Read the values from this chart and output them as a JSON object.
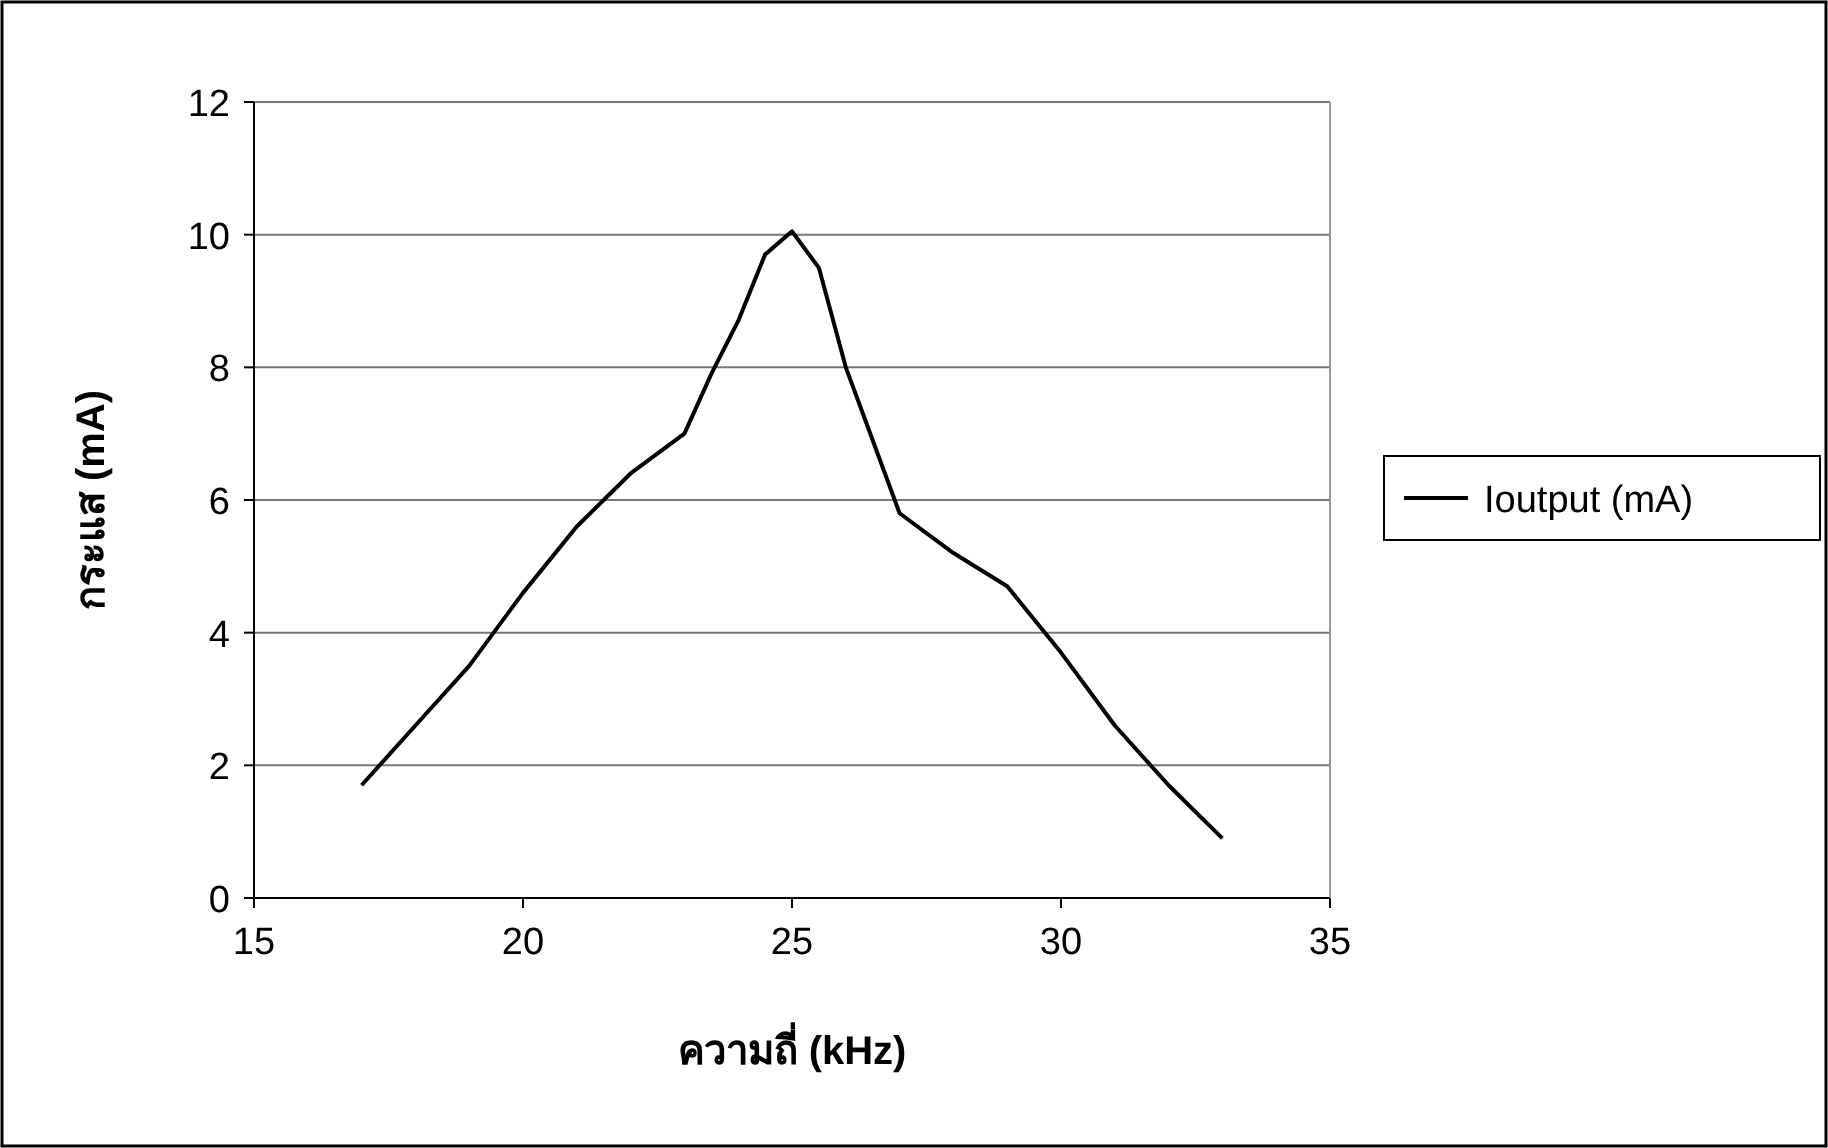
{
  "chart_data": {
    "type": "line",
    "xlabel": "ความถี่  (kHz)",
    "ylabel": "กระแส  (mA)",
    "x": [
      17,
      18,
      19,
      20,
      21,
      22,
      23,
      23.5,
      24,
      24.5,
      25,
      25.5,
      26,
      26.5,
      27,
      28,
      29,
      30,
      31,
      32,
      33
    ],
    "series": [
      {
        "name": "Ioutput (mA)",
        "color": "#000000",
        "values": [
          1.7,
          2.6,
          3.5,
          4.6,
          5.6,
          6.4,
          7.0,
          7.9,
          8.7,
          9.7,
          10.05,
          9.5,
          8.0,
          6.9,
          5.8,
          5.2,
          4.7,
          3.7,
          2.6,
          1.7,
          0.9
        ]
      }
    ],
    "xlim": [
      15,
      35
    ],
    "xticks": [
      15,
      20,
      25,
      30,
      35
    ],
    "ylim": [
      0,
      12
    ],
    "yticks": [
      0,
      2,
      4,
      6,
      8,
      10,
      12
    ],
    "grid": "y",
    "legend": "right",
    "marker": "none",
    "line_style": "solid"
  }
}
